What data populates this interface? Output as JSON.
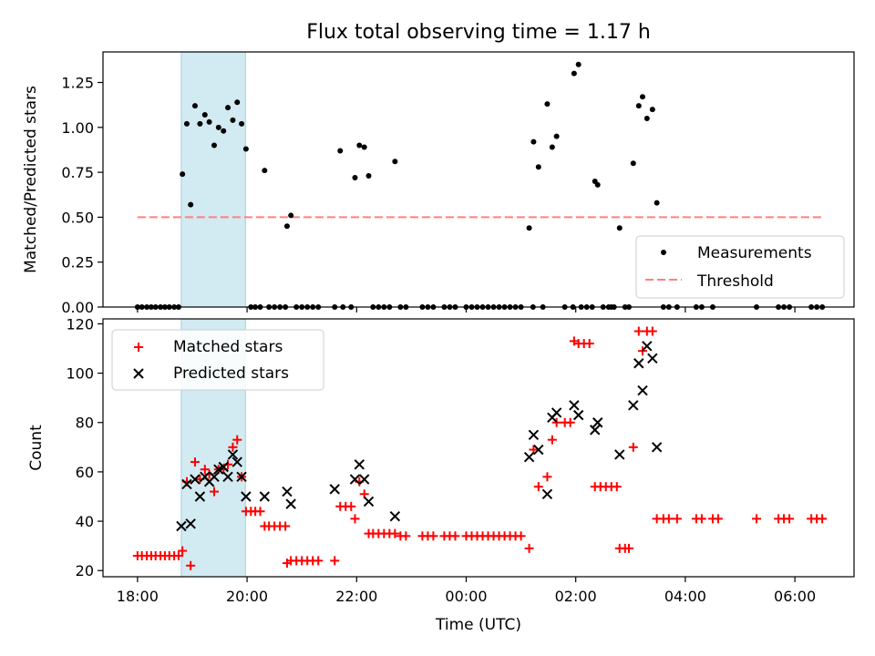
{
  "title": "Flux total observing time = 1.17 h",
  "colors": {
    "highlight": "#add8e6",
    "matched": "#ff0000",
    "predicted": "#000000",
    "threshold": "#ff7f7f",
    "measurement": "#000000"
  },
  "chart_data": [
    {
      "type": "scatter",
      "ylabel": "Matched/Predicted stars",
      "ylim": [
        0,
        1.42
      ],
      "xlim": [
        -0.63,
        13.08
      ],
      "x_unit": "hours after 18:00 UTC",
      "yticks": [
        "0.00",
        "0.25",
        "0.50",
        "0.75",
        "1.00",
        "1.25"
      ],
      "highlight_span": [
        0.8,
        1.97
      ],
      "threshold": {
        "value": 0.5,
        "x_range": [
          0,
          12.5
        ]
      },
      "legend": {
        "placement": "lower right",
        "items": [
          "Measurements",
          "Threshold"
        ]
      },
      "series": [
        {
          "name": "Measurements",
          "points": [
            [
              0.0,
              0
            ],
            [
              0.08,
              0
            ],
            [
              0.17,
              0
            ],
            [
              0.25,
              0
            ],
            [
              0.33,
              0
            ],
            [
              0.42,
              0
            ],
            [
              0.5,
              0
            ],
            [
              0.58,
              0
            ],
            [
              0.67,
              0
            ],
            [
              0.75,
              0
            ],
            [
              0.82,
              0.74
            ],
            [
              0.9,
              1.02
            ],
            [
              0.97,
              0.57
            ],
            [
              1.05,
              1.12
            ],
            [
              1.14,
              1.02
            ],
            [
              1.23,
              1.07
            ],
            [
              1.31,
              1.03
            ],
            [
              1.4,
              0.9
            ],
            [
              1.48,
              1.0
            ],
            [
              1.57,
              0.98
            ],
            [
              1.65,
              1.11
            ],
            [
              1.74,
              1.04
            ],
            [
              1.82,
              1.14
            ],
            [
              1.9,
              1.02
            ],
            [
              1.98,
              0.88
            ],
            [
              2.07,
              0
            ],
            [
              2.15,
              0
            ],
            [
              2.24,
              0
            ],
            [
              2.32,
              0.76
            ],
            [
              2.4,
              0
            ],
            [
              2.5,
              0
            ],
            [
              2.6,
              0
            ],
            [
              2.7,
              0
            ],
            [
              2.73,
              0.45
            ],
            [
              2.8,
              0.51
            ],
            [
              2.9,
              0
            ],
            [
              3.0,
              0
            ],
            [
              3.1,
              0
            ],
            [
              3.2,
              0
            ],
            [
              3.3,
              0
            ],
            [
              3.6,
              0
            ],
            [
              3.7,
              0.87
            ],
            [
              3.75,
              0
            ],
            [
              3.9,
              0
            ],
            [
              3.97,
              0.72
            ],
            [
              4.05,
              0.9
            ],
            [
              4.14,
              0.89
            ],
            [
              4.22,
              0.73
            ],
            [
              4.3,
              0
            ],
            [
              4.4,
              0
            ],
            [
              4.5,
              0
            ],
            [
              4.6,
              0
            ],
            [
              4.7,
              0.81
            ],
            [
              4.8,
              0
            ],
            [
              4.9,
              0
            ],
            [
              5.2,
              0
            ],
            [
              5.3,
              0
            ],
            [
              5.4,
              0
            ],
            [
              5.6,
              0
            ],
            [
              5.7,
              0
            ],
            [
              5.8,
              0
            ],
            [
              6.0,
              0
            ],
            [
              6.1,
              0
            ],
            [
              6.2,
              0
            ],
            [
              6.3,
              0
            ],
            [
              6.4,
              0
            ],
            [
              6.5,
              0
            ],
            [
              6.6,
              0
            ],
            [
              6.7,
              0
            ],
            [
              6.8,
              0
            ],
            [
              6.9,
              0
            ],
            [
              7.0,
              0
            ],
            [
              7.15,
              0.44
            ],
            [
              7.22,
              0
            ],
            [
              7.23,
              0.92
            ],
            [
              7.32,
              0.78
            ],
            [
              7.4,
              0
            ],
            [
              7.48,
              1.13
            ],
            [
              7.57,
              0.89
            ],
            [
              7.65,
              0.95
            ],
            [
              7.8,
              0
            ],
            [
              7.95,
              0
            ],
            [
              7.97,
              1.3
            ],
            [
              8.05,
              1.35
            ],
            [
              8.1,
              0
            ],
            [
              8.2,
              0
            ],
            [
              8.3,
              0
            ],
            [
              8.35,
              0.7
            ],
            [
              8.4,
              0.68
            ],
            [
              8.5,
              0
            ],
            [
              8.6,
              0
            ],
            [
              8.65,
              0
            ],
            [
              8.7,
              0
            ],
            [
              8.8,
              0.44
            ],
            [
              8.9,
              0
            ],
            [
              8.97,
              0
            ],
            [
              9.05,
              0.8
            ],
            [
              9.15,
              1.12
            ],
            [
              9.22,
              1.17
            ],
            [
              9.3,
              1.05
            ],
            [
              9.4,
              1.1
            ],
            [
              9.48,
              0.58
            ],
            [
              9.6,
              0
            ],
            [
              9.7,
              0
            ],
            [
              9.85,
              0
            ],
            [
              10.2,
              0
            ],
            [
              10.3,
              0
            ],
            [
              10.5,
              0
            ],
            [
              11.3,
              0
            ],
            [
              11.7,
              0
            ],
            [
              11.8,
              0
            ],
            [
              11.9,
              0
            ],
            [
              12.3,
              0
            ],
            [
              12.4,
              0
            ],
            [
              12.5,
              0
            ]
          ]
        }
      ]
    },
    {
      "type": "scatter",
      "xlabel": "Time (UTC)",
      "ylabel": "Count",
      "ylim": [
        17.5,
        122
      ],
      "xlim": [
        -0.63,
        13.08
      ],
      "x_unit": "hours after 18:00 UTC",
      "xticks": [
        {
          "value": 0,
          "label": "18:00"
        },
        {
          "value": 2,
          "label": "20:00"
        },
        {
          "value": 4,
          "label": "22:00"
        },
        {
          "value": 6,
          "label": "00:00"
        },
        {
          "value": 8,
          "label": "02:00"
        },
        {
          "value": 10,
          "label": "04:00"
        },
        {
          "value": 12,
          "label": "06:00"
        }
      ],
      "yticks": [
        "20",
        "40",
        "60",
        "80",
        "100",
        "120"
      ],
      "highlight_span": [
        0.8,
        1.97
      ],
      "legend": {
        "placement": "upper left",
        "items": [
          "Matched stars",
          "Predicted stars"
        ]
      },
      "series": [
        {
          "name": "Matched stars",
          "points": [
            [
              0.0,
              26
            ],
            [
              0.08,
              26
            ],
            [
              0.17,
              26
            ],
            [
              0.25,
              26
            ],
            [
              0.33,
              26
            ],
            [
              0.42,
              26
            ],
            [
              0.5,
              26
            ],
            [
              0.58,
              26
            ],
            [
              0.67,
              26
            ],
            [
              0.75,
              26
            ],
            [
              0.82,
              28
            ],
            [
              0.9,
              56
            ],
            [
              0.97,
              22
            ],
            [
              1.05,
              64
            ],
            [
              1.14,
              57
            ],
            [
              1.23,
              61
            ],
            [
              1.31,
              59
            ],
            [
              1.4,
              52
            ],
            [
              1.48,
              61
            ],
            [
              1.57,
              61
            ],
            [
              1.65,
              63
            ],
            [
              1.74,
              70
            ],
            [
              1.82,
              73
            ],
            [
              1.9,
              58
            ],
            [
              1.98,
              44
            ],
            [
              2.07,
              44
            ],
            [
              2.15,
              44
            ],
            [
              2.24,
              44
            ],
            [
              2.32,
              38
            ],
            [
              2.4,
              38
            ],
            [
              2.5,
              38
            ],
            [
              2.6,
              38
            ],
            [
              2.7,
              38
            ],
            [
              2.73,
              23
            ],
            [
              2.8,
              24
            ],
            [
              2.9,
              24
            ],
            [
              3.0,
              24
            ],
            [
              3.1,
              24
            ],
            [
              3.2,
              24
            ],
            [
              3.3,
              24
            ],
            [
              3.6,
              24
            ],
            [
              3.7,
              46
            ],
            [
              3.8,
              46
            ],
            [
              3.9,
              46
            ],
            [
              3.97,
              41
            ],
            [
              4.05,
              56
            ],
            [
              4.14,
              51
            ],
            [
              4.22,
              35
            ],
            [
              4.3,
              35
            ],
            [
              4.4,
              35
            ],
            [
              4.5,
              35
            ],
            [
              4.6,
              35
            ],
            [
              4.7,
              35
            ],
            [
              4.8,
              34
            ],
            [
              4.9,
              34
            ],
            [
              5.2,
              34
            ],
            [
              5.3,
              34
            ],
            [
              5.4,
              34
            ],
            [
              5.6,
              34
            ],
            [
              5.7,
              34
            ],
            [
              5.8,
              34
            ],
            [
              6.0,
              34
            ],
            [
              6.1,
              34
            ],
            [
              6.2,
              34
            ],
            [
              6.3,
              34
            ],
            [
              6.4,
              34
            ],
            [
              6.5,
              34
            ],
            [
              6.6,
              34
            ],
            [
              6.7,
              34
            ],
            [
              6.8,
              34
            ],
            [
              6.9,
              34
            ],
            [
              7.0,
              34
            ],
            [
              7.15,
              29
            ],
            [
              7.23,
              69
            ],
            [
              7.32,
              54
            ],
            [
              7.48,
              58
            ],
            [
              7.57,
              73
            ],
            [
              7.65,
              80
            ],
            [
              7.8,
              80
            ],
            [
              7.9,
              80
            ],
            [
              7.97,
              113
            ],
            [
              8.05,
              112
            ],
            [
              8.15,
              112
            ],
            [
              8.25,
              112
            ],
            [
              8.35,
              54
            ],
            [
              8.45,
              54
            ],
            [
              8.55,
              54
            ],
            [
              8.65,
              54
            ],
            [
              8.75,
              54
            ],
            [
              8.8,
              29
            ],
            [
              8.9,
              29
            ],
            [
              8.97,
              29
            ],
            [
              9.05,
              70
            ],
            [
              9.15,
              117
            ],
            [
              9.22,
              109
            ],
            [
              9.3,
              117
            ],
            [
              9.4,
              117
            ],
            [
              9.48,
              41
            ],
            [
              9.6,
              41
            ],
            [
              9.7,
              41
            ],
            [
              9.85,
              41
            ],
            [
              10.2,
              41
            ],
            [
              10.3,
              41
            ],
            [
              10.5,
              41
            ],
            [
              10.6,
              41
            ],
            [
              11.3,
              41
            ],
            [
              11.7,
              41
            ],
            [
              11.8,
              41
            ],
            [
              11.9,
              41
            ],
            [
              12.3,
              41
            ],
            [
              12.4,
              41
            ],
            [
              12.5,
              41
            ]
          ]
        },
        {
          "name": "Predicted stars",
          "points": [
            [
              0.8,
              38
            ],
            [
              0.9,
              55
            ],
            [
              0.97,
              39
            ],
            [
              1.05,
              57
            ],
            [
              1.14,
              50
            ],
            [
              1.23,
              58
            ],
            [
              1.31,
              56
            ],
            [
              1.4,
              58
            ],
            [
              1.48,
              61
            ],
            [
              1.57,
              62
            ],
            [
              1.65,
              58
            ],
            [
              1.74,
              67
            ],
            [
              1.82,
              64
            ],
            [
              1.9,
              58
            ],
            [
              1.98,
              50
            ],
            [
              2.32,
              50
            ],
            [
              2.73,
              52
            ],
            [
              2.8,
              47
            ],
            [
              3.6,
              53
            ],
            [
              3.97,
              57
            ],
            [
              4.05,
              63
            ],
            [
              4.14,
              57
            ],
            [
              4.22,
              48
            ],
            [
              4.7,
              42
            ],
            [
              7.15,
              66
            ],
            [
              7.23,
              75
            ],
            [
              7.32,
              69
            ],
            [
              7.48,
              51
            ],
            [
              7.57,
              82
            ],
            [
              7.65,
              84
            ],
            [
              7.97,
              87
            ],
            [
              8.05,
              83
            ],
            [
              8.35,
              77
            ],
            [
              8.4,
              80
            ],
            [
              8.8,
              67
            ],
            [
              9.05,
              87
            ],
            [
              9.15,
              104
            ],
            [
              9.22,
              93
            ],
            [
              9.3,
              111
            ],
            [
              9.4,
              106
            ],
            [
              9.48,
              70
            ]
          ]
        }
      ]
    }
  ]
}
